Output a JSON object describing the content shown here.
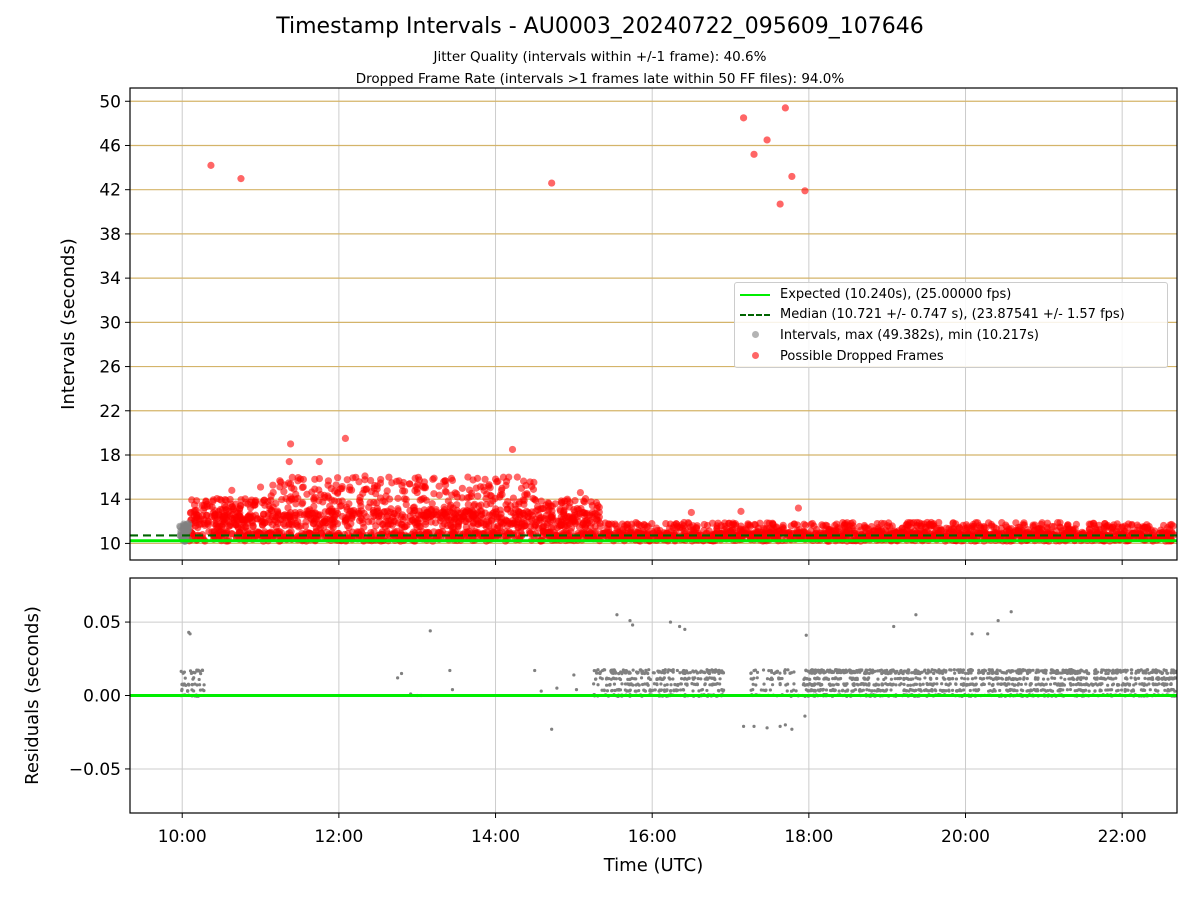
{
  "header": {
    "title": "Timestamp Intervals - AU0003_20240722_095609_107646",
    "subtitle1": "Jitter Quality (intervals within +/-1 frame): 40.6%",
    "subtitle2": "Dropped Frame Rate (intervals >1 frames late within 50 FF files): 94.0%"
  },
  "legend": {
    "expected": "Expected (10.240s), (25.00000 fps)",
    "median": "Median (10.721 +/- 0.747 s), (23.87541 +/- 1.57 fps)",
    "intervals": "Intervals, max (49.382s), min (10.217s)",
    "dropped": "Possible Dropped Frames"
  },
  "colors": {
    "expected": "#00ee00",
    "median": "#006400",
    "intervals": "#808080",
    "dropped": "#ff0000",
    "hgrid_top": "#d4b46a",
    "grid": "#cccccc"
  },
  "chart_data": [
    {
      "type": "scatter",
      "title": "Timestamp Intervals - AU0003_20240722_095609_107646",
      "xlabel": "",
      "ylabel": "Intervals (seconds)",
      "xlim": [
        "09:20",
        "22:42"
      ],
      "ylim": [
        8.5,
        51.2
      ],
      "x_ticks": [
        "10:00",
        "12:00",
        "14:00",
        "16:00",
        "18:00",
        "20:00",
        "22:00"
      ],
      "y_ticks": [
        10,
        14,
        18,
        22,
        26,
        30,
        34,
        38,
        42,
        46,
        50
      ],
      "grid": true,
      "legend_position": "center-right",
      "reference_lines": [
        {
          "name": "Expected (10.240s), (25.00000 fps)",
          "y": 10.24,
          "style": "solid"
        },
        {
          "name": "Median (10.721 +/- 0.747 s), (23.87541 +/- 1.57 fps)",
          "y": 10.721,
          "style": "dashed"
        }
      ],
      "series": [
        {
          "name": "Possible Dropped Frames",
          "points": [
            [
              "10:22",
              44.2
            ],
            [
              "10:45",
              43.0
            ],
            [
              "14:43",
              42.6
            ],
            [
              "17:10",
              48.5
            ],
            [
              "17:18",
              45.2
            ],
            [
              "17:28",
              46.5
            ],
            [
              "17:38",
              40.7
            ],
            [
              "17:42",
              49.4
            ],
            [
              "17:47",
              43.2
            ],
            [
              "17:57",
              41.9
            ],
            [
              "11:23",
              19.0
            ],
            [
              "12:05",
              19.5
            ],
            [
              "14:13",
              18.5
            ],
            [
              "11:45",
              17.4
            ],
            [
              "11:22",
              17.4
            ],
            [
              "13:27",
              15.7
            ],
            [
              "13:52",
              15.8
            ],
            [
              "10:38",
              14.8
            ],
            [
              "14:55",
              14.0
            ],
            [
              "15:05",
              14.6
            ],
            [
              "16:30",
              12.8
            ],
            [
              "17:08",
              12.9
            ],
            [
              "17:52",
              13.2
            ],
            [
              "11:00",
              15.1
            ],
            [
              "12:20",
              16.1
            ],
            [
              "13:00",
              14.6
            ]
          ]
        }
      ],
      "density_regions": [
        {
          "name": "Possible Dropped Frames",
          "from": "10:05",
          "to": "15:20",
          "y_range": [
            10.1,
            16.0
          ]
        },
        {
          "name": "Possible Dropped Frames",
          "from": "15:20",
          "to": "22:40",
          "y_range": [
            10.1,
            12.0
          ]
        },
        {
          "name": "Intervals, max (49.382s), min (10.217s)",
          "from": "09:58",
          "to": "10:05",
          "y_range": [
            10.2,
            11.8
          ]
        }
      ]
    },
    {
      "type": "scatter",
      "xlabel": "Time (UTC)",
      "ylabel": "Residuals (seconds)",
      "xlim": [
        "09:20",
        "22:42"
      ],
      "ylim": [
        -0.08,
        0.08
      ],
      "x_ticks": [
        "10:00",
        "12:00",
        "14:00",
        "16:00",
        "18:00",
        "20:00",
        "22:00"
      ],
      "y_ticks": [
        -0.05,
        0.0,
        0.05
      ],
      "y_tick_labels": [
        "−0.05",
        "0.00",
        "0.05"
      ],
      "grid": true,
      "reference_lines": [
        {
          "y": 0.0,
          "style": "solid"
        }
      ],
      "series": [
        {
          "points": [
            [
              "10:05",
              0.043
            ],
            [
              "10:06",
              0.042
            ],
            [
              "13:10",
              0.044
            ],
            [
              "15:33",
              0.055
            ],
            [
              "15:43",
              0.051
            ],
            [
              "15:45",
              0.048
            ],
            [
              "16:14",
              0.05
            ],
            [
              "16:21",
              0.047
            ],
            [
              "16:25",
              0.045
            ],
            [
              "17:58",
              0.041
            ],
            [
              "19:05",
              0.047
            ],
            [
              "19:22",
              0.055
            ],
            [
              "20:05",
              0.042
            ],
            [
              "20:17",
              0.042
            ],
            [
              "20:25",
              0.051
            ],
            [
              "20:35",
              0.057
            ],
            [
              "14:43",
              -0.023
            ],
            [
              "17:10",
              -0.021
            ],
            [
              "17:18",
              -0.021
            ],
            [
              "17:28",
              -0.022
            ],
            [
              "17:38",
              -0.021
            ],
            [
              "17:42",
              -0.02
            ],
            [
              "17:47",
              -0.023
            ],
            [
              "17:57",
              -0.014
            ],
            [
              "12:45",
              0.012
            ],
            [
              "12:48",
              0.015
            ],
            [
              "12:55",
              0.001
            ],
            [
              "13:00",
              0.0
            ],
            [
              "13:03",
              0.0
            ],
            [
              "13:25",
              0.017
            ],
            [
              "13:27",
              0.004
            ],
            [
              "14:30",
              0.017
            ],
            [
              "14:35",
              0.003
            ],
            [
              "14:47",
              0.005
            ],
            [
              "15:00",
              0.014
            ],
            [
              "15:02",
              0.004
            ]
          ]
        }
      ],
      "density_regions": [
        {
          "from": "09:59",
          "to": "10:17",
          "y_range": [
            0.0,
            0.017
          ]
        },
        {
          "from": "15:15",
          "to": "16:55",
          "y_range": [
            0.0,
            0.017
          ]
        },
        {
          "from": "17:15",
          "to": "17:52",
          "y_range": [
            0.0,
            0.017
          ]
        },
        {
          "from": "17:55",
          "to": "22:42",
          "y_range": [
            0.0,
            0.017
          ]
        }
      ]
    }
  ]
}
